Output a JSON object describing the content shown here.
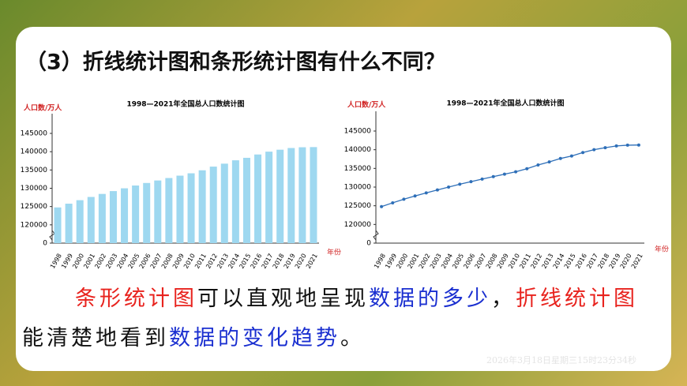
{
  "heading": "（3）折线统计图和条形统计图有什么不同？",
  "chart_data": [
    {
      "type": "bar",
      "title": "1998—2021年全国总人口数统计图",
      "y_label": "人口数/万人",
      "x_label": "年份",
      "color": "#9ed8f0",
      "categories": [
        "1998",
        "1999",
        "2000",
        "2001",
        "2002",
        "2003",
        "2004",
        "2005",
        "2006",
        "2007",
        "2008",
        "2009",
        "2010",
        "2011",
        "2012",
        "2013",
        "2014",
        "2015",
        "2016",
        "2017",
        "2018",
        "2019",
        "2020",
        "2021"
      ],
      "values": [
        124761,
        125786,
        126743,
        127627,
        128453,
        129227,
        129988,
        130756,
        131448,
        132129,
        132802,
        133450,
        134091,
        134916,
        135922,
        136726,
        137646,
        138326,
        139232,
        140011,
        140541,
        141008,
        141212,
        141260
      ],
      "ylim": [
        0,
        145000
      ],
      "yticks": [
        0,
        120000,
        125000,
        130000,
        135000,
        140000,
        145000
      ],
      "axis_break": true,
      "grid": false
    },
    {
      "type": "line",
      "title": "1998—2021年全国总人口数统计图",
      "y_label": "人口数/万人",
      "x_label": "年份",
      "color": "#2e6fb8",
      "categories": [
        "1998",
        "1999",
        "2000",
        "2001",
        "2002",
        "2003",
        "2004",
        "2005",
        "2006",
        "2007",
        "2008",
        "2009",
        "2010",
        "2011",
        "2012",
        "2013",
        "2014",
        "2015",
        "2016",
        "2017",
        "2018",
        "2019",
        "2020",
        "2021"
      ],
      "values": [
        124761,
        125786,
        126743,
        127627,
        128453,
        129227,
        129988,
        130756,
        131448,
        132129,
        132802,
        133450,
        134091,
        134916,
        135922,
        136726,
        137646,
        138326,
        139232,
        140011,
        140541,
        141008,
        141212,
        141260
      ],
      "ylim": [
        0,
        145000
      ],
      "yticks": [
        0,
        120000,
        125000,
        130000,
        135000,
        140000,
        145000
      ],
      "axis_break": true,
      "grid": false
    }
  ],
  "paragraph": [
    [
      {
        "text": "条形统计图",
        "color": "#e8231e"
      },
      {
        "text": "可以直观地呈现",
        "color": "#111111"
      },
      {
        "text": "数据的多少",
        "color": "#1a2fd0"
      },
      {
        "text": "，",
        "color": "#111111"
      },
      {
        "text": "折线统计图",
        "color": "#e8231e"
      }
    ],
    [
      {
        "text": "能清楚地看到",
        "color": "#111111"
      },
      {
        "text": "数据的变化趋势",
        "color": "#1a2fd0"
      },
      {
        "text": "。",
        "color": "#111111"
      }
    ]
  ],
  "timestamp": "2026年3月18日星期三15时23分34秒"
}
